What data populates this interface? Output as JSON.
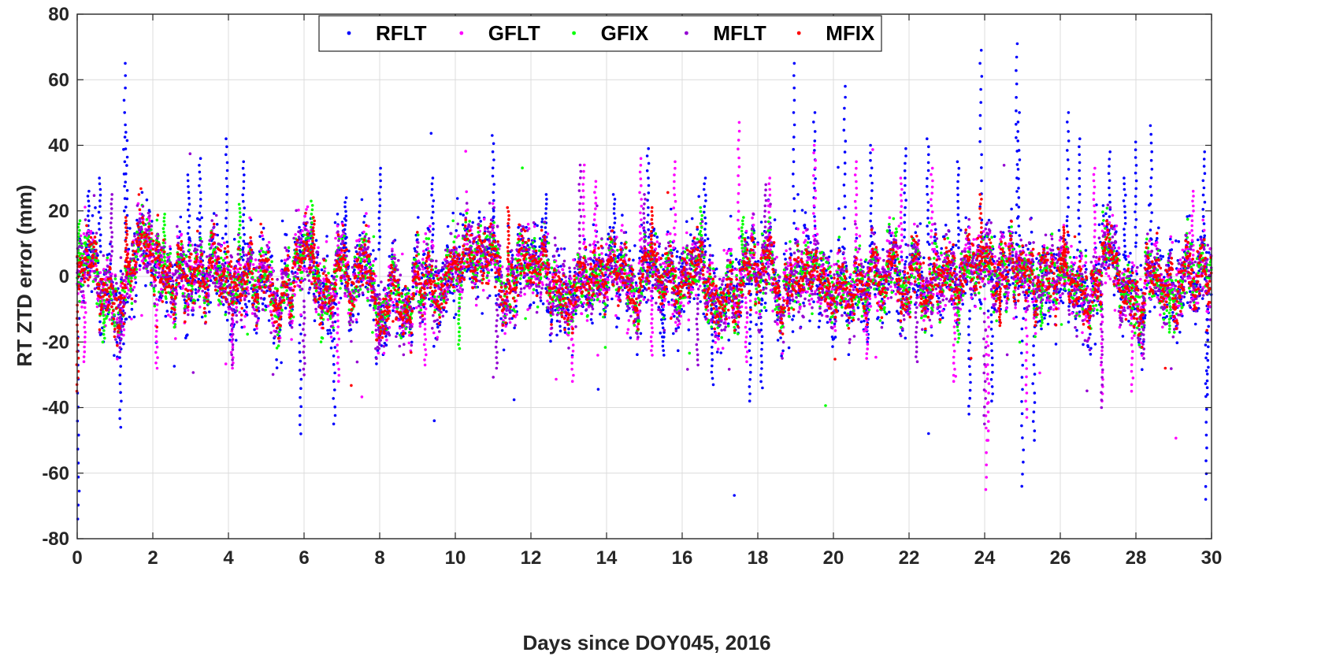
{
  "chart_data": {
    "type": "scatter",
    "title": "",
    "xlabel": "Days since DOY045, 2016",
    "ylabel": "RT ZTD error (mm)",
    "xlim": [
      0,
      30
    ],
    "ylim": [
      -80,
      80
    ],
    "xticks": [
      0,
      2,
      4,
      6,
      8,
      10,
      12,
      14,
      16,
      18,
      20,
      22,
      24,
      26,
      28,
      30
    ],
    "yticks": [
      -80,
      -60,
      -40,
      -20,
      0,
      20,
      40,
      60,
      80
    ],
    "grid": true,
    "legend_position": "top-center",
    "legend_orientation": "horizontal",
    "sampling_interval_days": 0.0104,
    "series": [
      {
        "name": "RFLT",
        "color": "#0000ff",
        "typical_spread_mm": 12,
        "spikes": [
          {
            "x": 0.03,
            "y": -74
          },
          {
            "x": 0.3,
            "y": 26
          },
          {
            "x": 0.6,
            "y": 30
          },
          {
            "x": 1.15,
            "y": -46
          },
          {
            "x": 1.25,
            "y": 65
          },
          {
            "x": 1.3,
            "y": 44
          },
          {
            "x": 2.95,
            "y": 31
          },
          {
            "x": 3.25,
            "y": 36
          },
          {
            "x": 3.95,
            "y": 42
          },
          {
            "x": 4.4,
            "y": 35
          },
          {
            "x": 5.9,
            "y": -48
          },
          {
            "x": 6.8,
            "y": -45
          },
          {
            "x": 7.1,
            "y": 24
          },
          {
            "x": 8.0,
            "y": 33
          },
          {
            "x": 9.4,
            "y": 30
          },
          {
            "x": 11.0,
            "y": 43
          },
          {
            "x": 12.4,
            "y": 25
          },
          {
            "x": 14.2,
            "y": 25
          },
          {
            "x": 15.1,
            "y": 39
          },
          {
            "x": 15.5,
            "y": -24
          },
          {
            "x": 16.6,
            "y": 30
          },
          {
            "x": 16.8,
            "y": -33
          },
          {
            "x": 17.8,
            "y": -38
          },
          {
            "x": 18.1,
            "y": -34
          },
          {
            "x": 18.95,
            "y": 65
          },
          {
            "x": 19.5,
            "y": 50
          },
          {
            "x": 20.3,
            "y": 58
          },
          {
            "x": 20.9,
            "y": -20
          },
          {
            "x": 21.0,
            "y": 40
          },
          {
            "x": 21.9,
            "y": 39
          },
          {
            "x": 22.5,
            "y": 42
          },
          {
            "x": 23.3,
            "y": 35
          },
          {
            "x": 23.6,
            "y": -42
          },
          {
            "x": 23.9,
            "y": 69
          },
          {
            "x": 24.2,
            "y": -38
          },
          {
            "x": 24.85,
            "y": 71
          },
          {
            "x": 24.9,
            "y": 50
          },
          {
            "x": 25.0,
            "y": -64
          },
          {
            "x": 25.3,
            "y": -50
          },
          {
            "x": 26.2,
            "y": 50
          },
          {
            "x": 26.5,
            "y": 42
          },
          {
            "x": 27.3,
            "y": 38
          },
          {
            "x": 27.7,
            "y": 30
          },
          {
            "x": 28.0,
            "y": 41
          },
          {
            "x": 28.4,
            "y": 46
          },
          {
            "x": 29.8,
            "y": 38
          },
          {
            "x": 29.85,
            "y": -68
          },
          {
            "x": 29.9,
            "y": -36
          }
        ]
      },
      {
        "name": "GFLT",
        "color": "#ff00ff",
        "typical_spread_mm": 9,
        "spikes": [
          {
            "x": 0.2,
            "y": -26
          },
          {
            "x": 1.9,
            "y": 18
          },
          {
            "x": 2.1,
            "y": -28
          },
          {
            "x": 4.1,
            "y": -28
          },
          {
            "x": 6.9,
            "y": -32
          },
          {
            "x": 9.2,
            "y": -27
          },
          {
            "x": 13.1,
            "y": -32
          },
          {
            "x": 13.4,
            "y": 34
          },
          {
            "x": 13.7,
            "y": 29
          },
          {
            "x": 14.9,
            "y": 36
          },
          {
            "x": 15.2,
            "y": -24
          },
          {
            "x": 15.8,
            "y": 35
          },
          {
            "x": 17.5,
            "y": 47
          },
          {
            "x": 17.7,
            "y": -26
          },
          {
            "x": 18.3,
            "y": 30
          },
          {
            "x": 19.5,
            "y": 40
          },
          {
            "x": 20.6,
            "y": 35
          },
          {
            "x": 20.9,
            "y": -25
          },
          {
            "x": 21.8,
            "y": 30
          },
          {
            "x": 22.6,
            "y": 33
          },
          {
            "x": 23.2,
            "y": -32
          },
          {
            "x": 24.05,
            "y": -65
          },
          {
            "x": 24.1,
            "y": -50
          },
          {
            "x": 25.1,
            "y": -43
          },
          {
            "x": 26.9,
            "y": 33
          },
          {
            "x": 27.1,
            "y": -38
          },
          {
            "x": 27.9,
            "y": -35
          },
          {
            "x": 29.5,
            "y": 26
          }
        ]
      },
      {
        "name": "GFIX",
        "color": "#00ff00",
        "typical_spread_mm": 7,
        "spikes": [
          {
            "x": 0.05,
            "y": 17
          },
          {
            "x": 0.7,
            "y": -20
          },
          {
            "x": 2.3,
            "y": 19
          },
          {
            "x": 4.3,
            "y": 22
          },
          {
            "x": 6.2,
            "y": 23
          },
          {
            "x": 10.1,
            "y": -22
          },
          {
            "x": 16.5,
            "y": 21
          },
          {
            "x": 17.6,
            "y": 18
          },
          {
            "x": 23.3,
            "y": -20
          },
          {
            "x": 25.5,
            "y": -15
          },
          {
            "x": 28.9,
            "y": -17
          }
        ]
      },
      {
        "name": "MFLT",
        "color": "#9400d3",
        "typical_spread_mm": 9,
        "spikes": [
          {
            "x": 0.9,
            "y": 25
          },
          {
            "x": 1.15,
            "y": -23
          },
          {
            "x": 4.1,
            "y": -27
          },
          {
            "x": 6.0,
            "y": -30
          },
          {
            "x": 8.0,
            "y": -22
          },
          {
            "x": 11.1,
            "y": -28
          },
          {
            "x": 13.3,
            "y": 34
          },
          {
            "x": 15.0,
            "y": 25
          },
          {
            "x": 16.4,
            "y": -27
          },
          {
            "x": 18.2,
            "y": 28
          },
          {
            "x": 22.2,
            "y": -26
          },
          {
            "x": 24.0,
            "y": -45
          },
          {
            "x": 27.1,
            "y": -40
          },
          {
            "x": 28.2,
            "y": -25
          }
        ]
      },
      {
        "name": "MFIX",
        "color": "#ff0000",
        "typical_spread_mm": 6,
        "spikes": [
          {
            "x": 0.01,
            "y": -35
          },
          {
            "x": 1.3,
            "y": 18
          },
          {
            "x": 6.25,
            "y": 18
          },
          {
            "x": 11.4,
            "y": 21
          },
          {
            "x": 15.2,
            "y": 21
          },
          {
            "x": 23.9,
            "y": 25
          },
          {
            "x": 24.4,
            "y": -15
          },
          {
            "x": 26.1,
            "y": 15
          }
        ]
      }
    ]
  }
}
